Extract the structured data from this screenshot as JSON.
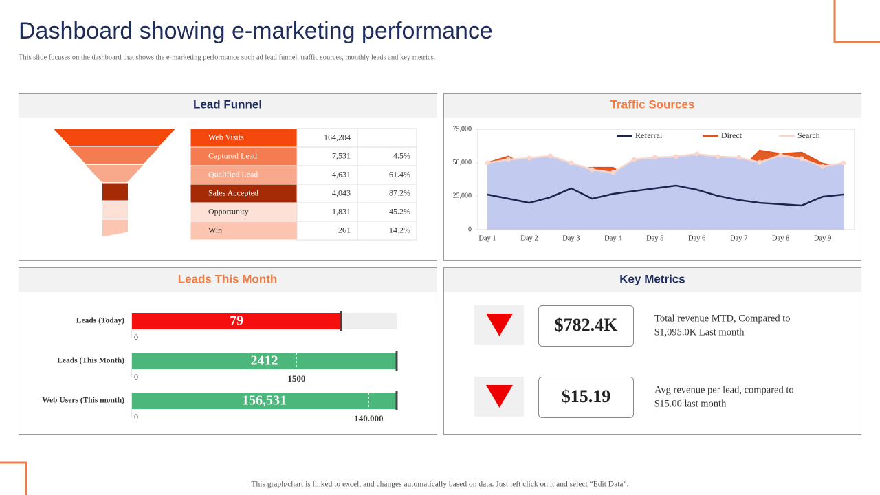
{
  "title": "Dashboard showing e-marketing performance",
  "subtitle": "This slide focuses on the dashboard that shows the e-marketing performance such ad lead funnel, traffic sources, monthly leads and key metrics.",
  "footer": "This graph/chart is linked to excel,  and changes automatically  based on data. Just left  click  on it and select “Edit Data”.",
  "lead_funnel": {
    "title": "Lead Funnel",
    "rows": [
      [
        "Web Visits",
        "164,284",
        ""
      ],
      [
        "Captured Lead",
        "7,531",
        "4.5%"
      ],
      [
        "Qualified  Lead",
        "4,631",
        "61.4%"
      ],
      [
        "Sales Accepted",
        "4,043",
        "87.2%"
      ],
      [
        "Opportunity",
        "1,831",
        "45.2%"
      ],
      [
        "Win",
        "261",
        "14.2%"
      ]
    ],
    "colors": [
      "#f4480c",
      "#f57c50",
      "#f8a98b",
      "#a52b07",
      "#fde0d6",
      "#fcc5b1"
    ]
  },
  "chart_data": {
    "type": "area",
    "title": "Traffic Sources",
    "categories": [
      "Day 1",
      null,
      "Day 2",
      null,
      "Day 3",
      null,
      "Day 4",
      null,
      "Day 5",
      null,
      "Day 6",
      null,
      "Day 7",
      null,
      "Day 8",
      null,
      "Day 9",
      null
    ],
    "series": [
      {
        "name": "Referral",
        "color": "#1b2550",
        "values": [
          26200,
          23100,
          20000,
          24100,
          30800,
          23100,
          26700,
          28800,
          30800,
          32900,
          29800,
          25200,
          22100,
          20000,
          19000,
          18000,
          24600,
          26200
        ]
      },
      {
        "name": "Direct",
        "color": "#e2531c",
        "values": [
          49800,
          54500,
          46200,
          43200,
          44200,
          46200,
          46200,
          34900,
          29800,
          28800,
          39600,
          43200,
          43200,
          59000,
          56500,
          57500,
          49300,
          46200
        ]
      },
      {
        "name": "Search",
        "color": "#f9d6cc",
        "values": [
          49800,
          52400,
          53400,
          55000,
          49800,
          44700,
          42600,
          52400,
          53900,
          54500,
          56500,
          54500,
          53900,
          50300,
          55500,
          52900,
          47200,
          49800
        ]
      }
    ],
    "ylim": [
      0,
      75000
    ],
    "yticks": [
      0,
      {
        "value": 25000,
        "label": "25,000"
      },
      {
        "value": 50000,
        "label": "50,000"
      },
      {
        "value": 75000,
        "label": "75,000"
      }
    ],
    "grid": false
  },
  "leads_this_month": {
    "title": "Leads This Month",
    "gauges": [
      {
        "label": "Leads (Today)",
        "value": 79,
        "min": 0,
        "max": 100,
        "color": "#f50f0f"
      },
      {
        "label": "Leads (This Month)",
        "value": 2412,
        "min": 0,
        "max": 2412,
        "target": 1500,
        "color": "#4bb77a"
      },
      {
        "label": "Web Users (This month)",
        "value": 156531,
        "value_label": "156,531",
        "min": 0,
        "max": 156531,
        "target": 140000,
        "target_label": "140.000",
        "color": "#4bb77a"
      }
    ]
  },
  "key_metrics": {
    "title": "Key Metrics",
    "items": [
      {
        "value": "$782.4K",
        "lines": [
          "Total revenue  MTD, Compared to",
          "$1,095.0K Last month"
        ]
      },
      {
        "value": "$15.19",
        "lines": [
          "Avg revenue  per lead,  compared to",
          "$15.00 last month"
        ]
      }
    ]
  }
}
